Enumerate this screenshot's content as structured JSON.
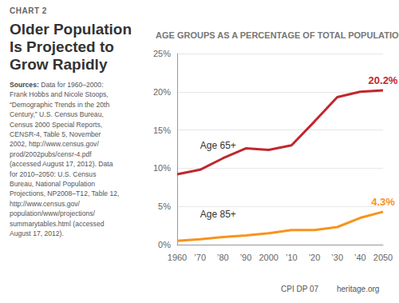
{
  "page": {
    "chart_label": "CHART 2",
    "heading": "Older Population Is Projected to Grow Rapidly",
    "sources_label": "Sources:",
    "sources_lines": [
      "Data for 1960–2000:",
      "Frank Hobbs and Nicole Stoops,",
      "“Demographic Trends in the 20th",
      "Century,” U.S. Census Bureau,",
      "Census 2000 Special Reports,",
      "CENSR-4, Table 5, November",
      "2002, http://www.census.gov/",
      "prod/2002pubs/censr-4.pdf",
      "(accessed August 17, 2012). Data",
      "for 2010–2050: U.S. Census",
      "Bureau, National Population",
      "Projections, NP2008–T12, Table 12,",
      "http://www.census.gov/",
      "population/www/projections/",
      "summarytables.html (accessed",
      "August 17, 2012)."
    ],
    "footer": [
      "CPI DP 07",
      "heritage.org"
    ]
  },
  "chart_data": {
    "type": "line",
    "title": "AGE GROUPS AS A PERCENTAGE OF TOTAL POPULATION",
    "categories": [
      "1960",
      "’70",
      "’80",
      "’90",
      "2000",
      "’10",
      "’20",
      "’30",
      "’40",
      "2050"
    ],
    "series": [
      {
        "name": "Age 65+",
        "color": "#c1272d",
        "values": [
          9.2,
          9.8,
          11.3,
          12.6,
          12.4,
          13.0,
          16.1,
          19.3,
          20.0,
          20.2
        ],
        "value_labels": [
          null,
          null,
          null,
          null,
          null,
          null,
          null,
          null,
          null,
          "20.2%"
        ]
      },
      {
        "name": "Age 85+",
        "color": "#f7941d",
        "values": [
          0.5,
          0.7,
          1.0,
          1.2,
          1.5,
          1.9,
          1.9,
          2.3,
          3.5,
          4.3
        ],
        "value_labels": [
          null,
          null,
          null,
          null,
          null,
          null,
          null,
          null,
          null,
          "4.3%"
        ]
      }
    ],
    "ylim": [
      0,
      25
    ],
    "yticks": [
      {
        "value": 0,
        "label": "0%"
      },
      {
        "value": 5,
        "label": "5%"
      },
      {
        "value": 10,
        "label": "10%"
      },
      {
        "value": 15,
        "label": "15%"
      },
      {
        "value": 20,
        "label": "20%"
      },
      {
        "value": 25,
        "label": "25%"
      }
    ],
    "grid": true
  }
}
